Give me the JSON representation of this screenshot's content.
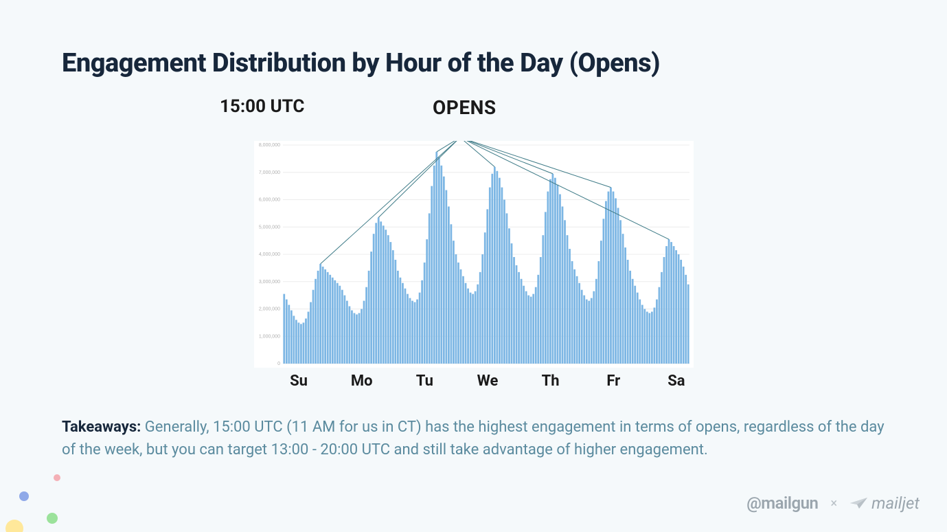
{
  "title": "Engagement Distribution by Hour of the Day (Opens)",
  "time_label": "15:00 UTC",
  "opens_label": "OPENS",
  "chart": {
    "type": "bar",
    "background_color": "#ffffff",
    "bar_color": "#7cb6e4",
    "grid_color": "#ececec",
    "line_color": "#3e7b87",
    "label_color": "#b0b0b0",
    "label_fontsize": 7,
    "ylim": [
      0,
      8000000
    ],
    "ytick_step": 1000000,
    "ytick_labels": [
      "0",
      "1,000,000",
      "2,000,000",
      "3,000,000",
      "4,000,000",
      "5,000,000",
      "6,000,000",
      "7,000,000",
      "8,000,000"
    ],
    "day_labels": [
      "Su",
      "Mo",
      "Tu",
      "We",
      "Th",
      "Fr",
      "Sa"
    ],
    "peak_hour_index": 15,
    "values": [
      2550000,
      2350000,
      2150000,
      1950000,
      1750000,
      1600000,
      1500000,
      1450000,
      1500000,
      1650000,
      1900000,
      2250000,
      2700000,
      3100000,
      3400000,
      3650000,
      3550000,
      3450000,
      3350000,
      3250000,
      3150000,
      3050000,
      2950000,
      2850000,
      2700000,
      2500000,
      2300000,
      2100000,
      1950000,
      1850000,
      1800000,
      1850000,
      2000000,
      2300000,
      2800000,
      3400000,
      4100000,
      4750000,
      5150000,
      5350000,
      5200000,
      5050000,
      4900000,
      4700000,
      4450000,
      4150000,
      3800000,
      3400000,
      3150000,
      2950000,
      2750000,
      2550000,
      2400000,
      2300000,
      2250000,
      2350000,
      2600000,
      3050000,
      3700000,
      4550000,
      5500000,
      6500000,
      7250000,
      7750000,
      7550000,
      7250000,
      6850000,
      6350000,
      5750000,
      5100000,
      4500000,
      4000000,
      3700000,
      3450000,
      3200000,
      2950000,
      2750000,
      2600000,
      2550000,
      2650000,
      2900000,
      3350000,
      4000000,
      4800000,
      5650000,
      6450000,
      6950000,
      7200000,
      7050000,
      6800000,
      6450000,
      6000000,
      5500000,
      4950000,
      4400000,
      3900000,
      3600000,
      3350000,
      3100000,
      2850000,
      2650000,
      2500000,
      2450000,
      2550000,
      2800000,
      3250000,
      3900000,
      4700000,
      5550000,
      6300000,
      6750000,
      6950000,
      6800000,
      6550000,
      6200000,
      5750000,
      5250000,
      4700000,
      4200000,
      3750000,
      3450000,
      3200000,
      2950000,
      2700000,
      2500000,
      2350000,
      2300000,
      2400000,
      2650000,
      3100000,
      3750000,
      4500000,
      5300000,
      5950000,
      6300000,
      6450000,
      6300000,
      6050000,
      5700000,
      5250000,
      4750000,
      4250000,
      3800000,
      3400000,
      3100000,
      2850000,
      2600000,
      2350000,
      2150000,
      2000000,
      1900000,
      1850000,
      1900000,
      2050000,
      2350000,
      2800000,
      3350000,
      3900000,
      4300000,
      4550000,
      4450000,
      4300000,
      4150000,
      4000000,
      3800000,
      3550000,
      3250000,
      2900000
    ]
  },
  "takeaways": {
    "label": "Takeaways:",
    "text": " Generally, 15:00 UTC (11 AM for us in CT) has the highest engagement in terms of opens, regardless of the day of the week, but you can target 13:00 - 20:00 UTC and still take advantage of higher engagement."
  },
  "logos": {
    "mailgun": "@mailgun",
    "separator": "×",
    "mailjet": "mailjet"
  }
}
